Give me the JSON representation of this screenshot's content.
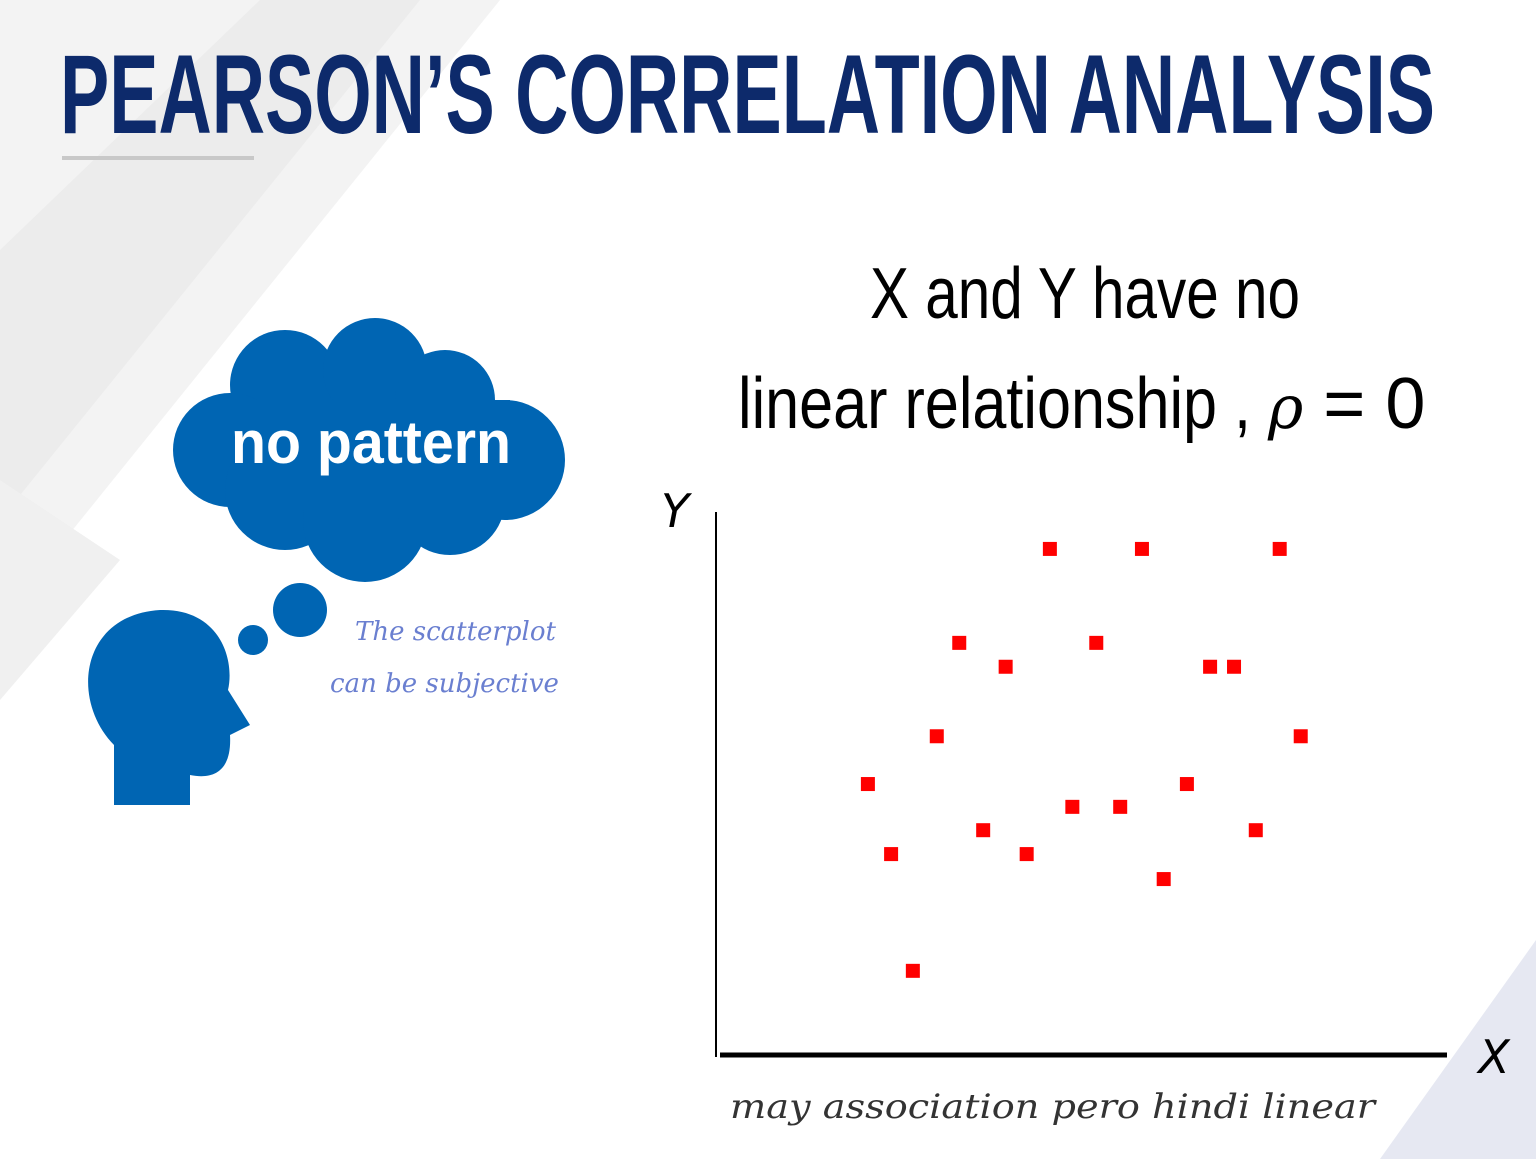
{
  "header": {
    "title": "PEARSON’S CORRELATION ANALYSIS"
  },
  "thought": {
    "bubble": "no pattern",
    "note": [
      "The scatterplot",
      "can be subjective"
    ]
  },
  "statement": {
    "line1": "X and Y have no",
    "line2": "linear relationship , ",
    "symbol": "ρ",
    "equals": " = 0"
  },
  "chart_data": {
    "type": "scatter",
    "x_label": "X",
    "y_label": "Y",
    "annotation": "may association pero hindi linear",
    "color": "#ff0000",
    "xlim": [
      0,
      100
    ],
    "ylim": [
      0,
      100
    ],
    "x": [
      45.5,
      58.2,
      77.2,
      33.0,
      51.9,
      39.4,
      67.6,
      70.9,
      29.9,
      80.1,
      20.4,
      64.4,
      48.6,
      55.2,
      36.3,
      73.9,
      23.6,
      42.3,
      61.2,
      26.6
    ],
    "values": [
      93.2,
      93.2,
      93.2,
      75.9,
      75.9,
      71.5,
      71.5,
      71.5,
      58.7,
      58.7,
      49.9,
      49.9,
      45.7,
      45.7,
      41.4,
      41.4,
      37.0,
      37.0,
      32.4,
      15.5
    ]
  }
}
